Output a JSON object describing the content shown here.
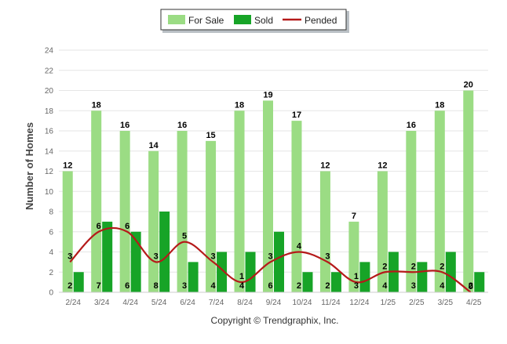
{
  "chart_data": {
    "type": "bar",
    "ylabel": "Number of Homes",
    "xlabel": "",
    "ylim": [
      0,
      24
    ],
    "yticks": [
      0,
      2,
      4,
      6,
      8,
      10,
      12,
      14,
      16,
      18,
      20,
      22,
      24
    ],
    "grid": true,
    "legend_position": "top-center",
    "categories": [
      "2/24",
      "3/24",
      "4/24",
      "5/24",
      "6/24",
      "7/24",
      "8/24",
      "9/24",
      "10/24",
      "11/24",
      "12/24",
      "1/25",
      "2/25",
      "3/25",
      "4/25"
    ],
    "series": [
      {
        "name": "For Sale",
        "type": "bar",
        "color": "#9bdc84",
        "values": [
          12,
          18,
          16,
          14,
          16,
          15,
          18,
          19,
          17,
          12,
          7,
          12,
          16,
          18,
          20
        ]
      },
      {
        "name": "Sold",
        "type": "bar",
        "color": "#17a427",
        "values": [
          2,
          7,
          6,
          8,
          3,
          4,
          4,
          6,
          2,
          2,
          3,
          4,
          3,
          4,
          2
        ]
      },
      {
        "name": "Pended",
        "type": "line",
        "color": "#b51a1a",
        "values": [
          3,
          6,
          6,
          3,
          5,
          3,
          1,
          3,
          4,
          3,
          1,
          2,
          2,
          2,
          0
        ]
      }
    ],
    "footer": "Copyright © Trendgraphix, Inc."
  }
}
